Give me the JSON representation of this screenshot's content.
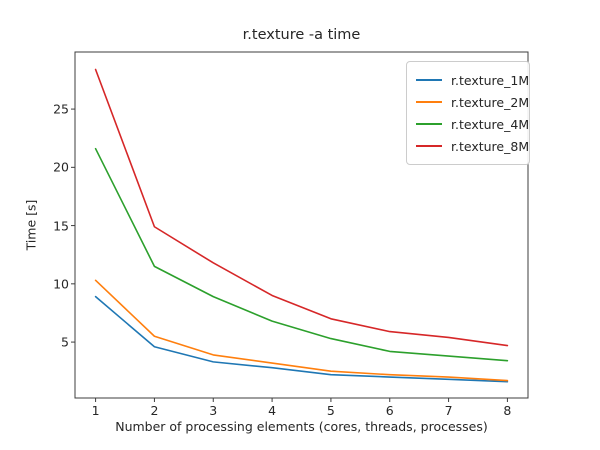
{
  "chart_data": {
    "type": "line",
    "title": "r.texture -a time",
    "xlabel": "Number of processing elements (cores, threads, processes)",
    "ylabel": "Time [s]",
    "x": [
      1,
      2,
      3,
      4,
      5,
      6,
      7,
      8
    ],
    "series": [
      {
        "name": "r.texture_1M",
        "color": "#1f77b4",
        "values": [
          8.9,
          4.6,
          3.3,
          2.8,
          2.2,
          2.0,
          1.8,
          1.6
        ]
      },
      {
        "name": "r.texture_2M",
        "color": "#ff7f0e",
        "values": [
          10.3,
          5.5,
          3.9,
          3.2,
          2.5,
          2.2,
          2.0,
          1.7
        ]
      },
      {
        "name": "r.texture_4M",
        "color": "#2ca02c",
        "values": [
          21.6,
          11.5,
          8.9,
          6.8,
          5.3,
          4.2,
          3.8,
          3.4
        ]
      },
      {
        "name": "r.texture_8M",
        "color": "#d62728",
        "values": [
          28.4,
          14.9,
          11.8,
          9.0,
          7.0,
          5.9,
          5.4,
          4.7
        ]
      }
    ],
    "x_ticks": [
      "1",
      "2",
      "3",
      "4",
      "5",
      "6",
      "7",
      "8"
    ],
    "y_ticks": [
      "5",
      "10",
      "15",
      "20",
      "25"
    ],
    "x_tick_values": [
      1,
      2,
      3,
      4,
      5,
      6,
      7,
      8
    ],
    "y_tick_values": [
      5,
      10,
      15,
      20,
      25
    ],
    "xlim": [
      0.65,
      8.35
    ],
    "ylim": [
      0.2,
      29.9
    ],
    "grid": false,
    "legend_position": "upper right",
    "spine_color": "#3c3c3c",
    "background_color": "#ffffff"
  }
}
